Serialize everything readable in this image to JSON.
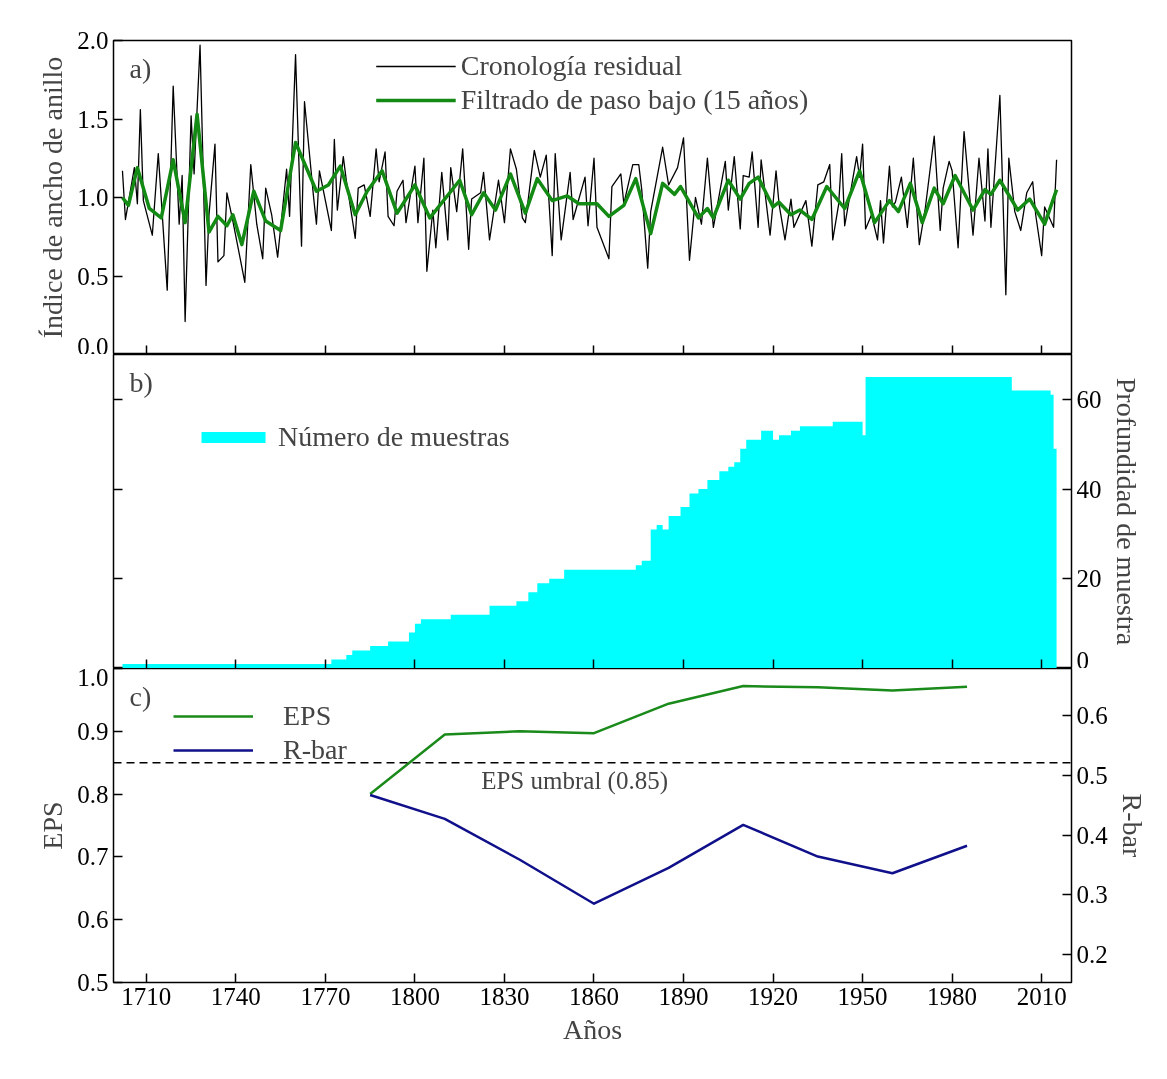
{
  "chart_data": [
    {
      "type": "line",
      "ylabel": "Índice de ancho de anillo",
      "annotations": [
        "a)"
      ],
      "xlim": [
        1699,
        2020
      ],
      "xticks": [
        1710,
        1740,
        1770,
        1800,
        1830,
        1860,
        1890,
        1920,
        1950,
        1980,
        2010
      ],
      "ylim": [
        0,
        2
      ],
      "yticks": [
        {
          "value": 0,
          "label": "0.0"
        },
        0.5,
        {
          "value": 1,
          "label": "1.0"
        },
        1.5,
        {
          "value": 2,
          "label": "2.0"
        }
      ],
      "tick_labels": "y",
      "legend": "top",
      "grid": false,
      "series": [
        {
          "name": "Cronología residual",
          "color": "#000000",
          "x": [
            1702,
            1703,
            1706,
            1707,
            1708,
            1709,
            1712,
            1714,
            1717,
            1719,
            1721,
            1722,
            1723,
            1725,
            1726,
            1728,
            1730,
            1731,
            1733,
            1734,
            1736,
            1737,
            1739,
            1743,
            1745,
            1747,
            1749,
            1750,
            1752,
            1754,
            1757,
            1758,
            1760,
            1762,
            1763,
            1766,
            1767,
            1768,
            1772,
            1773,
            1774,
            1776,
            1777,
            1780,
            1781,
            1783,
            1785,
            1787,
            1788,
            1790,
            1791,
            1793,
            1794,
            1796,
            1797,
            1800,
            1801,
            1803,
            1804,
            1806,
            1807,
            1809,
            1811,
            1812,
            1814,
            1816,
            1818,
            1819,
            1822,
            1823,
            1825,
            1828,
            1830,
            1832,
            1834,
            1836,
            1837,
            1840,
            1842,
            1844,
            1846,
            1847,
            1849,
            1852,
            1853,
            1857,
            1858,
            1860,
            1861,
            1865,
            1866,
            1869,
            1870,
            1873,
            1875,
            1876,
            1878,
            1879,
            1883,
            1885,
            1888,
            1890,
            1892,
            1894,
            1896,
            1898,
            1900,
            1904,
            1905,
            1907,
            1909,
            1910,
            1912,
            1913,
            1915,
            1916,
            1919,
            1921,
            1922,
            1924,
            1926,
            1927,
            1931,
            1933,
            1935,
            1937,
            1939,
            1940,
            1942,
            1943,
            1944,
            1948,
            1949,
            1950,
            1951,
            1953,
            1955,
            1956,
            1957,
            1959,
            1960,
            1961,
            1963,
            1965,
            1967,
            1969,
            1971,
            1974,
            1976,
            1977,
            1979,
            1980,
            1982,
            1984,
            1987,
            1989,
            1991,
            1992,
            1993,
            1996,
            1998,
            1999,
            2001,
            2003,
            2005,
            2007,
            2008,
            2010,
            2011,
            2014,
            2015
          ],
          "values": [
            1.17,
            0.86,
            1.19,
            0.96,
            1.56,
            0.98,
            0.76,
            1.28,
            0.41,
            1.71,
            0.83,
            1.14,
            0.21,
            1.52,
            1.15,
            1.97,
            0.44,
            0.89,
            1.34,
            0.59,
            0.63,
            1.03,
            0.85,
            0.46,
            1.21,
            0.83,
            0.61,
            1.06,
            0.89,
            0.62,
            1.18,
            0.88,
            1.91,
            0.69,
            1.61,
            1.01,
            0.83,
            1.17,
            0.79,
            1.37,
            0.92,
            1.26,
            1.11,
            0.74,
            1.06,
            1.08,
            0.88,
            1.31,
            1.1,
            1.29,
            0.88,
            0.82,
            1.04,
            1.11,
            0.84,
            1.2,
            0.84,
            1.25,
            0.53,
            0.92,
            0.68,
            1.16,
            0.73,
            1.19,
            0.91,
            1.31,
            0.67,
            0.99,
            1.03,
            1.16,
            0.73,
            1.11,
            0.84,
            1.31,
            1.18,
            0.87,
            0.84,
            1.3,
            1.13,
            1.27,
            0.63,
            1.28,
            0.73,
            1.16,
            0.86,
            1.13,
            0.82,
            1.25,
            0.81,
            0.61,
            1.07,
            1.15,
            0.96,
            1.21,
            1.21,
            1.05,
            0.55,
            0.91,
            1.32,
            1.08,
            1.19,
            1.38,
            0.6,
            1.0,
            0.83,
            1.25,
            0.81,
            1.23,
            0.92,
            1.26,
            0.8,
            1.14,
            1.13,
            1.29,
            0.81,
            1.24,
            0.76,
            1.17,
            0.96,
            0.73,
            0.99,
            0.81,
            0.98,
            0.69,
            1.08,
            1.1,
            1.21,
            0.73,
            0.96,
            1.28,
            0.82,
            1.26,
            1.13,
            1.34,
            0.8,
            0.89,
            0.73,
            0.98,
            0.71,
            1.2,
            0.94,
            0.97,
            1.13,
            0.81,
            1.25,
            0.7,
            0.93,
            1.39,
            0.79,
            1.06,
            1.23,
            1.17,
            0.68,
            1.42,
            0.76,
            1.25,
            0.85,
            1.31,
            0.81,
            1.65,
            0.38,
            1.25,
            0.91,
            0.79,
            1.03,
            1.1,
            0.89,
            0.63,
            0.94,
            0.81,
            1.24
          ]
        },
        {
          "name": "Filtrado de paso bajo (15 años)",
          "color": "#138a13",
          "x": [
            1702,
            1704,
            1707,
            1711,
            1715,
            1719,
            1723,
            1727,
            1731,
            1734,
            1737,
            1739,
            1742,
            1746,
            1750,
            1755,
            1760,
            1767,
            1771,
            1775,
            1780,
            1784,
            1789,
            1794,
            1800,
            1805,
            1815,
            1819,
            1823,
            1827,
            1832,
            1837,
            1841,
            1846,
            1851,
            1855,
            1861,
            1865,
            1870,
            1874,
            1879,
            1883,
            1887,
            1889,
            1895,
            1898,
            1900,
            1905,
            1909,
            1912,
            1915,
            1920,
            1922,
            1926,
            1929,
            1933,
            1938,
            1944,
            1949,
            1954,
            1959,
            1962,
            1966,
            1970,
            1974,
            1977,
            1981,
            1987,
            1991,
            1993,
            1996,
            2002,
            2006,
            2011,
            2015
          ],
          "values": [
            1.0,
            0.95,
            1.19,
            0.93,
            0.87,
            1.24,
            0.84,
            1.53,
            0.78,
            0.88,
            0.82,
            0.89,
            0.7,
            1.04,
            0.85,
            0.79,
            1.35,
            1.04,
            1.08,
            1.2,
            0.89,
            1.04,
            1.17,
            0.9,
            1.08,
            0.87,
            1.11,
            0.89,
            1.03,
            0.92,
            1.15,
            0.9,
            1.12,
            0.98,
            1.01,
            0.96,
            0.96,
            0.88,
            0.95,
            1.12,
            0.77,
            1.09,
            1.02,
            1.07,
            0.87,
            0.93,
            0.87,
            1.11,
            0.99,
            1.09,
            1.13,
            0.94,
            0.97,
            0.89,
            0.92,
            0.86,
            1.07,
            0.93,
            1.17,
            0.84,
            0.98,
            0.91,
            1.09,
            0.84,
            1.06,
            0.96,
            1.14,
            0.92,
            1.05,
            1.02,
            1.11,
            0.92,
            0.99,
            0.83,
            1.05
          ]
        }
      ]
    },
    {
      "type": "area",
      "y2label": "Profundidad de muestra",
      "annotations": [
        "b)"
      ],
      "xlim": [
        1699,
        2020
      ],
      "xticks": [
        1710,
        1740,
        1770,
        1800,
        1830,
        1860,
        1890,
        1920,
        1950,
        1980,
        2010
      ],
      "y2lim": [
        0,
        70
      ],
      "y2ticks": [
        0,
        20,
        40,
        60
      ],
      "tick_labels": "y",
      "legend": "top left",
      "grid": false,
      "series": [
        {
          "name": "Número de muestras",
          "color": "#00ffff",
          "axis": "y2",
          "x": [
            1702,
            1772,
            1777,
            1779,
            1785,
            1791,
            1798,
            1800,
            1802,
            1812,
            1825,
            1834,
            1838,
            1841,
            1845,
            1850,
            1874,
            1876,
            1879,
            1881,
            1883,
            1885,
            1889,
            1892,
            1895,
            1898,
            1902,
            1905,
            1907,
            1909,
            1911,
            1916,
            1920,
            1922,
            1926,
            1929,
            1940,
            1950,
            1951,
            2000,
            2013,
            2014,
            2015
          ],
          "values": [
            1,
            2,
            3,
            4,
            5,
            6,
            8,
            10,
            11,
            12,
            14,
            15,
            17,
            19,
            20,
            22,
            23,
            24,
            31,
            32,
            31,
            34,
            36,
            39,
            40,
            42,
            44,
            45,
            46,
            49,
            51,
            53,
            51,
            52,
            53,
            54,
            55,
            52,
            65,
            62,
            61,
            49,
            49
          ]
        }
      ]
    },
    {
      "type": "line",
      "xlabel": "Años",
      "ylabel": "EPS",
      "y2label": "R-bar",
      "annotations": [
        "c)"
      ],
      "xlim": [
        1699,
        2020
      ],
      "xticks": [
        1710,
        1740,
        1770,
        1800,
        1830,
        1860,
        1890,
        1920,
        1950,
        1980,
        2010
      ],
      "ylim": [
        0.5,
        1.0
      ],
      "yticks": [
        0.5,
        0.6,
        0.7,
        0.8,
        0.9,
        {
          "value": 1.0,
          "label": "1.0"
        }
      ],
      "y2lim": [
        0.153,
        0.679
      ],
      "y2ticks": [
        0.2,
        0.3,
        0.4,
        0.5,
        0.6
      ],
      "legend": "top left",
      "grid": false,
      "ref_lines": [
        {
          "axis": "y",
          "value": 0.85,
          "label": "EPS umbral (0.85)",
          "line_style": "dashed",
          "color": "#000000"
        }
      ],
      "series": [
        {
          "name": "EPS",
          "color": "#1a8a1a",
          "x": [
            1785,
            1810,
            1835,
            1860,
            1885,
            1910,
            1935,
            1960,
            1985
          ],
          "values": [
            0.8,
            0.895,
            0.9,
            0.897,
            0.944,
            0.972,
            0.97,
            0.965,
            0.971
          ]
        },
        {
          "name": "R-bar",
          "color": "#10108a",
          "axis": "y2",
          "x": [
            1785,
            1810,
            1835,
            1860,
            1885,
            1910,
            1935,
            1960,
            1985
          ],
          "values": [
            0.467,
            0.427,
            0.359,
            0.285,
            0.345,
            0.417,
            0.364,
            0.336,
            0.382
          ]
        }
      ]
    }
  ]
}
